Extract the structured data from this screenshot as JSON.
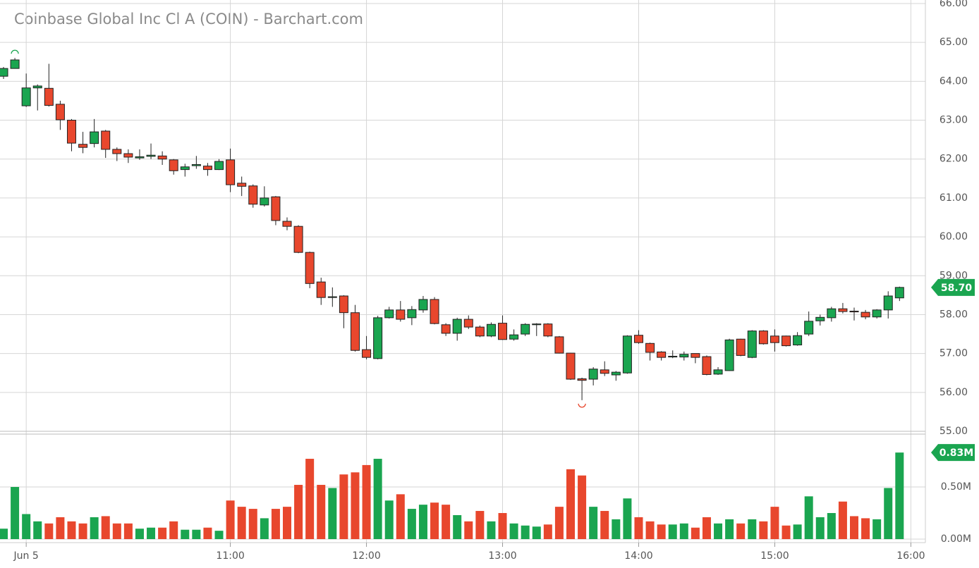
{
  "chart_data": {
    "type": "candlestick",
    "title": "Coinbase Global Inc Cl A (COIN) - Barchart.com",
    "categories": [
      null,
      null,
      "Jun 5",
      null,
      null,
      null,
      null,
      null,
      null,
      null,
      null,
      null,
      null,
      null,
      null,
      null,
      null,
      null,
      null,
      null,
      "11:00",
      null,
      null,
      null,
      null,
      null,
      null,
      null,
      null,
      null,
      null,
      null,
      "12:00",
      null,
      null,
      null,
      null,
      null,
      null,
      null,
      null,
      null,
      null,
      null,
      "13:00",
      null,
      null,
      null,
      null,
      null,
      null,
      null,
      null,
      null,
      null,
      null,
      "14:00",
      null,
      null,
      null,
      null,
      null,
      null,
      null,
      null,
      null,
      null,
      null,
      "15:00",
      null,
      null,
      null,
      null,
      null,
      null,
      null,
      null,
      null,
      null,
      null,
      "16:00"
    ],
    "open": [
      64.13,
      64.33,
      63.37,
      63.83,
      63.82,
      63.41,
      63.0,
      62.38,
      62.4,
      62.72,
      62.25,
      62.14,
      62.03,
      62.07,
      62.08,
      61.98,
      61.73,
      61.83,
      61.82,
      61.73,
      61.98,
      61.38,
      61.31,
      60.82,
      61.03,
      60.4,
      60.27,
      59.6,
      58.84,
      58.44,
      58.48,
      58.05,
      57.1,
      56.87,
      57.92,
      58.12,
      57.92,
      58.12,
      58.39,
      57.74,
      57.52,
      57.88,
      57.68,
      57.45,
      57.78,
      57.37,
      57.5,
      57.74,
      57.76,
      57.43,
      57.01,
      56.35,
      56.34,
      56.58,
      56.45,
      56.5,
      57.47,
      57.26,
      57.04,
      56.91,
      56.91,
      57.0,
      56.92,
      56.47,
      56.56,
      57.37,
      56.9,
      57.58,
      57.45,
      57.45,
      57.22,
      57.5,
      57.84,
      57.92,
      58.15,
      58.09,
      58.06,
      57.94,
      58.12,
      58.43,
      null
    ],
    "high": [
      64.37,
      64.6,
      64.2,
      63.92,
      64.45,
      63.5,
      63.03,
      62.7,
      63.03,
      62.75,
      62.3,
      62.25,
      62.25,
      62.4,
      62.2,
      62.0,
      61.88,
      62.08,
      61.9,
      62.0,
      62.27,
      61.55,
      61.35,
      61.3,
      61.05,
      60.5,
      60.3,
      59.62,
      58.95,
      58.7,
      58.5,
      58.25,
      57.45,
      57.97,
      58.2,
      58.35,
      58.22,
      58.48,
      58.45,
      57.78,
      57.92,
      57.98,
      57.72,
      57.8,
      57.98,
      57.62,
      57.78,
      57.78,
      57.78,
      57.45,
      57.02,
      56.38,
      56.65,
      56.8,
      56.55,
      57.47,
      57.6,
      57.28,
      57.06,
      57.08,
      57.05,
      57.0,
      56.95,
      56.65,
      57.38,
      57.38,
      57.6,
      57.6,
      57.62,
      57.46,
      57.55,
      58.08,
      58.0,
      58.2,
      58.3,
      58.18,
      58.12,
      58.14,
      58.6,
      58.72,
      null
    ],
    "low": [
      64.06,
      64.33,
      63.34,
      63.25,
      63.35,
      62.75,
      62.2,
      62.15,
      62.3,
      62.03,
      61.95,
      61.9,
      61.98,
      62.0,
      61.85,
      61.6,
      61.55,
      61.75,
      61.57,
      61.72,
      61.15,
      61.05,
      60.75,
      60.78,
      60.3,
      60.17,
      59.58,
      58.68,
      58.25,
      58.2,
      57.65,
      57.05,
      56.85,
      56.85,
      57.9,
      57.82,
      57.73,
      58.05,
      57.75,
      57.45,
      57.33,
      57.63,
      57.42,
      57.42,
      57.35,
      57.33,
      57.45,
      57.45,
      57.42,
      57.0,
      56.32,
      55.8,
      56.18,
      56.42,
      56.3,
      56.48,
      57.25,
      56.82,
      56.82,
      56.88,
      56.82,
      56.75,
      56.44,
      56.45,
      56.55,
      56.93,
      56.88,
      57.23,
      57.05,
      57.18,
      57.2,
      57.45,
      57.72,
      57.82,
      58.03,
      57.85,
      57.88,
      57.9,
      57.9,
      58.35,
      null
    ],
    "close": [
      64.33,
      64.55,
      63.83,
      63.88,
      63.38,
      63.01,
      62.41,
      62.3,
      62.7,
      62.25,
      62.14,
      62.05,
      62.06,
      62.1,
      62.0,
      61.7,
      61.8,
      61.86,
      61.73,
      61.94,
      61.34,
      61.3,
      60.84,
      61.0,
      60.42,
      60.27,
      59.6,
      58.8,
      58.44,
      58.46,
      58.05,
      57.08,
      56.9,
      57.92,
      58.12,
      57.88,
      58.13,
      58.39,
      57.77,
      57.52,
      57.88,
      57.68,
      57.45,
      57.75,
      57.36,
      57.48,
      57.75,
      57.76,
      57.45,
      57.01,
      56.34,
      56.31,
      56.6,
      56.49,
      56.52,
      57.45,
      57.28,
      57.03,
      56.9,
      56.93,
      56.98,
      56.9,
      56.46,
      56.58,
      57.35,
      56.95,
      57.58,
      57.25,
      57.28,
      57.2,
      57.46,
      57.83,
      57.93,
      58.15,
      58.08,
      58.07,
      57.94,
      58.12,
      58.48,
      58.7,
      null
    ],
    "volume": [
      0.1,
      0.5,
      0.24,
      0.17,
      0.15,
      0.21,
      0.17,
      0.15,
      0.21,
      0.22,
      0.15,
      0.15,
      0.1,
      0.11,
      0.11,
      0.17,
      0.09,
      0.09,
      0.11,
      0.08,
      0.37,
      0.31,
      0.29,
      0.2,
      0.29,
      0.31,
      0.52,
      0.77,
      0.52,
      0.49,
      0.62,
      0.64,
      0.71,
      0.77,
      0.37,
      0.43,
      0.29,
      0.33,
      0.35,
      0.33,
      0.23,
      0.17,
      0.27,
      0.17,
      0.25,
      0.15,
      0.13,
      0.12,
      0.14,
      0.31,
      0.67,
      0.61,
      0.31,
      0.27,
      0.19,
      0.39,
      0.21,
      0.17,
      0.14,
      0.14,
      0.15,
      0.11,
      0.21,
      0.15,
      0.19,
      0.15,
      0.19,
      0.17,
      0.31,
      0.13,
      0.14,
      0.41,
      0.21,
      0.25,
      0.36,
      0.22,
      0.2,
      0.19,
      0.49,
      0.83,
      null
    ],
    "last_labels": {
      "price": "58.70",
      "volume": "0.83M"
    },
    "up_color": "#1aa550",
    "down_color": "#e8472d",
    "ylim": [
      55,
      66
    ],
    "yticks": [
      {
        "value": 55,
        "label": "55.00"
      },
      {
        "value": 56,
        "label": "56.00"
      },
      {
        "value": 57,
        "label": "57.00"
      },
      {
        "value": 58,
        "label": "58.00"
      },
      {
        "value": 59,
        "label": "59.00"
      },
      {
        "value": 60,
        "label": "60.00"
      },
      {
        "value": 61,
        "label": "61.00"
      },
      {
        "value": 62,
        "label": "62.00"
      },
      {
        "value": 63,
        "label": "63.00"
      },
      {
        "value": 64,
        "label": "64.00"
      },
      {
        "value": 65,
        "label": "65.00"
      },
      {
        "value": 66,
        "label": "66.00"
      }
    ],
    "volume_ylim": [
      0,
      1
    ],
    "volume_yticks": [
      {
        "value": 0,
        "label": "0.00M"
      },
      {
        "value": 0.5,
        "label": "0.50M"
      }
    ],
    "grid": true
  }
}
